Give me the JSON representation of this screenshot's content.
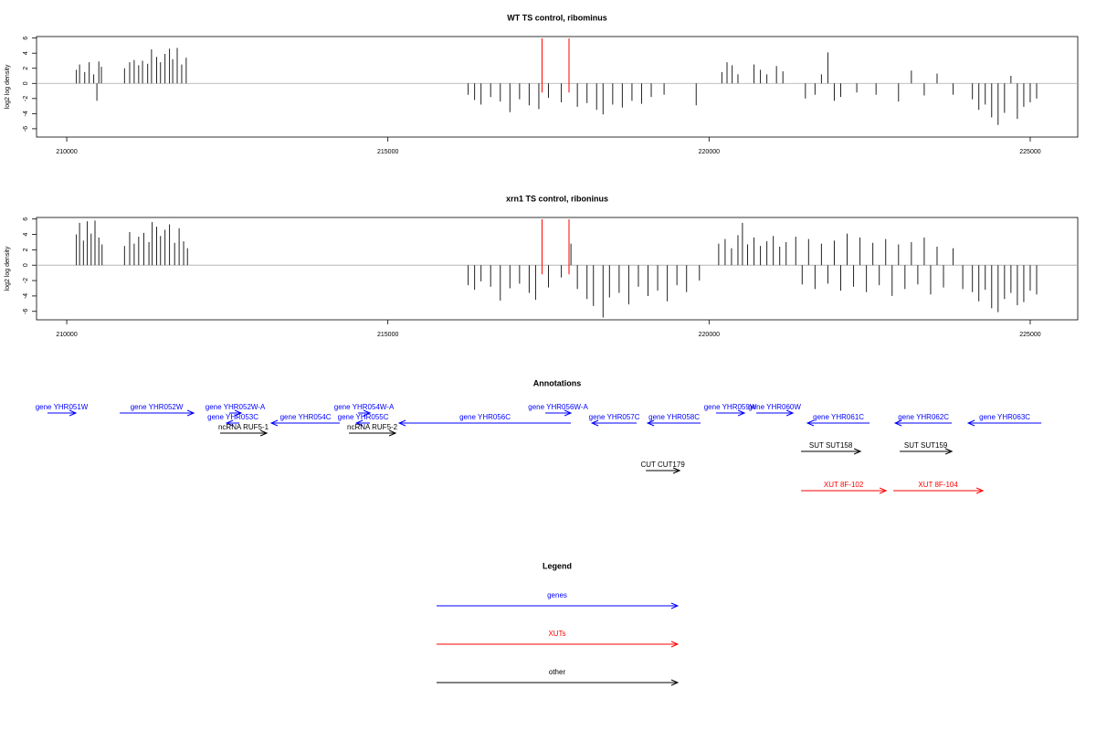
{
  "chart_data": [
    {
      "type": "bar",
      "title": "WT TS control, ribominus",
      "y_label": "log2 log density",
      "color": "#222222",
      "xlim": [
        209530,
        225740
      ],
      "ylim": [
        -7.1,
        6.2
      ],
      "xticks": [
        210000,
        215000,
        220000,
        225000
      ],
      "yticks": [
        -6,
        -4,
        -2,
        0,
        2,
        4,
        6
      ],
      "markers": [
        217400,
        217820
      ],
      "marker_color": "#ff0000",
      "x": [
        210150,
        210200,
        210280,
        210350,
        210420,
        210470,
        210500,
        210540,
        210900,
        210980,
        211050,
        211120,
        211180,
        211260,
        211320,
        211400,
        211460,
        211530,
        211600,
        211650,
        211720,
        211790,
        211860,
        216250,
        216350,
        216450,
        216600,
        216750,
        216900,
        217050,
        217200,
        217350,
        217500,
        217700,
        217950,
        218100,
        218250,
        218350,
        218500,
        218650,
        218800,
        218950,
        219100,
        219300,
        219800,
        220200,
        220280,
        220360,
        220450,
        220700,
        220800,
        220900,
        221050,
        221150,
        221500,
        221650,
        221750,
        221850,
        221950,
        222050,
        222300,
        222600,
        222950,
        223150,
        223350,
        223550,
        223800,
        224100,
        224200,
        224300,
        224400,
        224500,
        224600,
        224700,
        224800,
        224900,
        225000,
        225100
      ],
      "values": [
        1.8,
        2.5,
        1.5,
        2.8,
        1.2,
        -2.3,
        2.9,
        2.2,
        2.0,
        2.8,
        3.1,
        2.4,
        3.0,
        2.6,
        4.5,
        3.5,
        2.8,
        3.9,
        4.6,
        3.2,
        4.7,
        2.5,
        3.4,
        -1.5,
        -2.2,
        -2.8,
        -1.8,
        -2.4,
        -3.8,
        -2.1,
        -2.9,
        -3.4,
        -1.9,
        -2.5,
        -3.1,
        -2.6,
        -3.5,
        -4.1,
        -2.8,
        -3.2,
        -2.3,
        -2.7,
        -1.8,
        -1.5,
        -2.9,
        1.5,
        2.8,
        2.4,
        1.2,
        2.5,
        1.8,
        1.2,
        2.3,
        1.6,
        -2.0,
        -1.5,
        1.2,
        4.1,
        -2.3,
        -1.8,
        -1.2,
        -1.5,
        -2.4,
        1.7,
        -1.6,
        1.3,
        -1.5,
        -2.1,
        -3.5,
        -2.8,
        -4.5,
        -5.5,
        -3.9,
        1.0,
        -4.7,
        -3.1,
        -2.5,
        -2.0
      ]
    },
    {
      "type": "bar",
      "title": "xrn1 TS control, riboninus",
      "y_label": "log2 log density",
      "color": "#222222",
      "xlim": [
        209530,
        225740
      ],
      "ylim": [
        -7.1,
        6.2
      ],
      "xticks": [
        210000,
        215000,
        220000,
        225000
      ],
      "yticks": [
        -6,
        -4,
        -2,
        0,
        2,
        4,
        6
      ],
      "markers": [
        217400,
        217820
      ],
      "marker_color": "#ff0000",
      "x": [
        210150,
        210200,
        210260,
        210320,
        210380,
        210440,
        210500,
        210550,
        210900,
        210980,
        211050,
        211120,
        211200,
        211280,
        211330,
        211400,
        211460,
        211530,
        211600,
        211680,
        211750,
        211820,
        211880,
        216250,
        216350,
        216450,
        216600,
        216750,
        216900,
        217050,
        217200,
        217300,
        217500,
        217700,
        217850,
        217950,
        218100,
        218200,
        218350,
        218450,
        218600,
        218750,
        218900,
        219050,
        219200,
        219350,
        219500,
        219650,
        219850,
        220150,
        220250,
        220350,
        220450,
        220520,
        220600,
        220700,
        220800,
        220900,
        221000,
        221100,
        221200,
        221350,
        221450,
        221550,
        221650,
        221750,
        221850,
        221950,
        222050,
        222150,
        222250,
        222350,
        222450,
        222550,
        222650,
        222750,
        222850,
        222950,
        223050,
        223150,
        223250,
        223350,
        223450,
        223550,
        223650,
        223800,
        223950,
        224100,
        224200,
        224300,
        224400,
        224500,
        224600,
        224700,
        224800,
        224900,
        225000,
        225100
      ],
      "values": [
        4.0,
        5.5,
        3.2,
        5.7,
        4.1,
        5.8,
        3.6,
        2.7,
        2.5,
        4.3,
        2.8,
        3.7,
        4.2,
        3.0,
        5.6,
        5.0,
        3.8,
        4.6,
        5.3,
        2.9,
        4.8,
        3.1,
        2.2,
        -2.6,
        -3.2,
        -2.1,
        -2.8,
        -4.6,
        -3.0,
        -2.4,
        -3.6,
        -4.5,
        -2.9,
        -1.6,
        2.8,
        -3.1,
        -4.4,
        -5.3,
        -6.8,
        -4.2,
        -3.6,
        -5.1,
        -2.8,
        -4.0,
        -3.3,
        -4.7,
        -2.6,
        -3.5,
        -2.0,
        2.8,
        3.4,
        2.2,
        3.9,
        5.5,
        2.7,
        3.6,
        2.5,
        3.1,
        3.8,
        2.4,
        3.0,
        3.7,
        -2.5,
        3.4,
        -3.1,
        2.8,
        -2.4,
        3.2,
        -3.3,
        4.1,
        -2.8,
        3.6,
        -3.5,
        2.9,
        -2.6,
        3.4,
        -4.0,
        2.7,
        -3.1,
        3.0,
        -2.5,
        3.6,
        -3.8,
        2.4,
        -2.9,
        2.2,
        -3.1,
        -3.5,
        -4.7,
        -3.2,
        -5.6,
        -6.1,
        -4.4,
        -3.6,
        -5.2,
        -4.8,
        -3.3,
        -3.8
      ]
    }
  ],
  "annotations": {
    "title": "Annotations",
    "tracks": [
      {
        "features": [
          {
            "label": "gene YHR051W",
            "start": 209701,
            "end": 210142,
            "color": "#0000ff"
          },
          {
            "label": "gene YHR052W",
            "start": 210825,
            "end": 211977,
            "color": "#0000ff"
          },
          {
            "label": "gene YHR052W-A",
            "start": 212531,
            "end": 212716,
            "color": "#0000ff"
          },
          {
            "label": "gene YHR054W-A",
            "start": 214536,
            "end": 214721,
            "color": "#0000ff"
          },
          {
            "label": "gene YHR056W-A",
            "start": 217451,
            "end": 217849,
            "color": "#0000ff"
          },
          {
            "label": "gene YHR059W",
            "start": 220110,
            "end": 220551,
            "color": "#0000ff"
          },
          {
            "label": "gene YHR060W",
            "start": 220736,
            "end": 221305,
            "color": "#0000ff"
          }
        ]
      },
      {
        "features": [
          {
            "label": "gene YHR053C",
            "start": 212688,
            "end": 212489,
            "color": "#0000ff"
          },
          {
            "label": "gene YHR054C",
            "start": 214252,
            "end": 213185,
            "color": "#0000ff"
          },
          {
            "label": "gene YHR055C",
            "start": 214721,
            "end": 214508,
            "color": "#0000ff"
          },
          {
            "label": "gene YHR056C",
            "start": 217849,
            "end": 215176,
            "color": "#0000ff"
          },
          {
            "label": "gene YHR057C",
            "start": 218873,
            "end": 218177,
            "color": "#0000ff"
          },
          {
            "label": "gene YHR058C",
            "start": 219869,
            "end": 219044,
            "color": "#0000ff"
          },
          {
            "label": "gene YHR061C",
            "start": 222500,
            "end": 221532,
            "color": "#0000ff"
          },
          {
            "label": "gene YHR062C",
            "start": 223780,
            "end": 222898,
            "color": "#0000ff"
          },
          {
            "label": "gene YHR063C",
            "start": 225173,
            "end": 224035,
            "color": "#0000ff"
          }
        ]
      },
      {
        "features": [
          {
            "label": "ncRNA RUF5-1",
            "start": 212389,
            "end": 213114,
            "color": "#000000"
          },
          {
            "label": "ncRNA RUF5-2",
            "start": 214394,
            "end": 215119,
            "color": "#000000"
          }
        ]
      },
      {
        "features": [
          {
            "label": "SUT SUT158",
            "start": 221433,
            "end": 222357,
            "color": "#000000"
          },
          {
            "label": "SUT SUT159",
            "start": 222969,
            "end": 223780,
            "color": "#000000"
          }
        ]
      },
      {
        "features": [
          {
            "label": "CUT CUT179",
            "start": 219016,
            "end": 219542,
            "color": "#000000"
          }
        ]
      },
      {
        "features": [
          {
            "label": "XUT 8F-102",
            "start": 221433,
            "end": 222756,
            "color": "#ff0000"
          },
          {
            "label": "XUT 8F-104",
            "start": 222869,
            "end": 224263,
            "color": "#ff0000"
          }
        ]
      }
    ]
  },
  "legend": {
    "title": "Legend",
    "items": [
      {
        "label": "genes",
        "color": "#0000ff"
      },
      {
        "label": "XUTs",
        "color": "#ff0000"
      },
      {
        "label": "other",
        "color": "#000000"
      }
    ]
  }
}
